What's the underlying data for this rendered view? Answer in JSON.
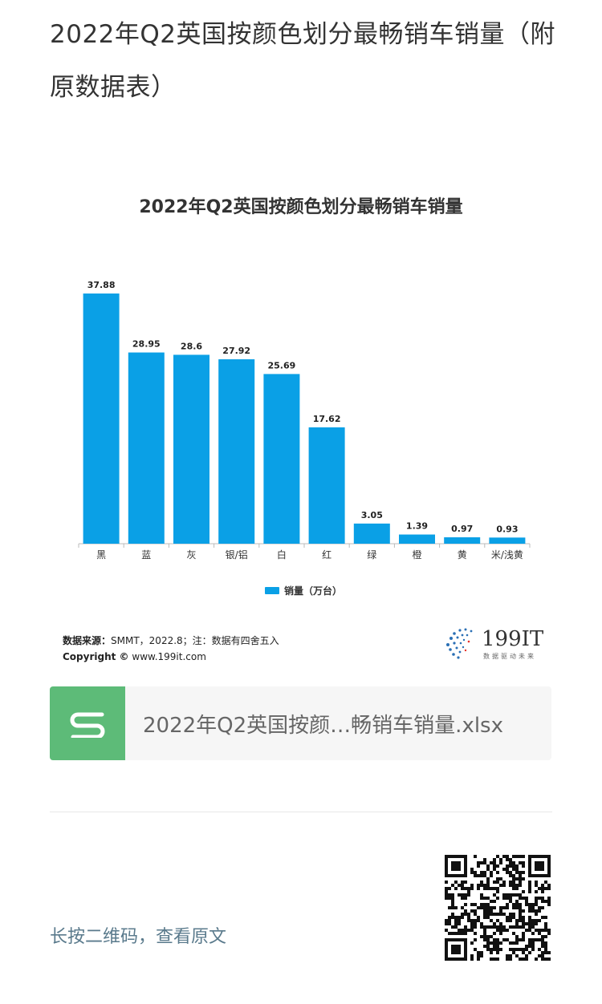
{
  "article": {
    "title": "2022年Q2英国按颜色划分最畅销车销量（附原数据表）"
  },
  "chart_data": {
    "type": "bar",
    "title": "2022年Q2英国按颜色划分最畅销车销量",
    "categories": [
      "黑",
      "蓝",
      "灰",
      "银/铝",
      "白",
      "红",
      "绿",
      "橙",
      "黄",
      "米/浅黄"
    ],
    "series": [
      {
        "name": "销量（万台）",
        "values": [
          37.88,
          28.95,
          28.6,
          27.92,
          25.69,
          17.62,
          3.05,
          1.39,
          0.97,
          0.93
        ]
      }
    ],
    "value_labels": [
      "37.88",
      "28.95",
      "28.6",
      "27.92",
      "25.69",
      "17.62",
      "3.05",
      "1.39",
      "0.97",
      "0.93"
    ],
    "ylim": [
      0,
      37.88
    ],
    "grid": false,
    "legend_position": "bottom",
    "bar_color": "#0aa0e6"
  },
  "chart_footer": {
    "source_label": "数据来源：",
    "source_text": "SMMT，2022.8；注：数据有四舍五入",
    "copyright_label": "Copyright ©",
    "copyright_text": "www.199it.com",
    "brand_name": "199IT",
    "brand_tagline": "数据驱动未来"
  },
  "attachment": {
    "file_name": "2022年Q2英国按颜…畅销车销量.xlsx",
    "icon": "spreadsheet-s-icon",
    "icon_color": "#5dbb78"
  },
  "footer": {
    "longpress_text": "长按二维码，查看原文",
    "qr_icon": "qr-code-icon"
  }
}
